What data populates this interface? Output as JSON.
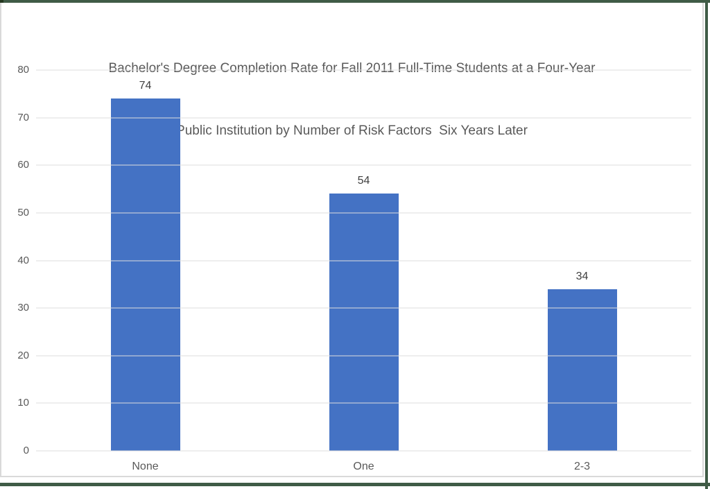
{
  "frame": {
    "green_color": "#3F5B46",
    "corner_color": "#24381F",
    "chart_border_color": "#D9D9D9",
    "background": "#FFFFFF"
  },
  "chart_data": {
    "type": "bar",
    "title": "Bachelor's Degree Completion Rate for Fall 2011 Full-Time Students at a Four-Year Public Institution by Number of Risk Factors  Six Years Later",
    "title_lines": [
      "Bachelor's Degree Completion Rate for Fall 2011 Full-Time Students at a Four-Year",
      "Public Institution by Number of Risk Factors  Six Years Later"
    ],
    "categories": [
      "None",
      "One",
      "2-3"
    ],
    "values": [
      74,
      54,
      34
    ],
    "data_labels": [
      "74",
      "54",
      "34"
    ],
    "xlabel": "",
    "ylabel": "",
    "ylim": [
      0,
      80
    ],
    "yticks": [
      0,
      10,
      20,
      30,
      40,
      50,
      60,
      70,
      80
    ],
    "grid": true,
    "legend": false,
    "colors": {
      "bar": "#4472C4",
      "gridline": "#DEDEDE",
      "axis_text": "#595959",
      "data_label": "#404040",
      "title_text": "#595959"
    }
  }
}
